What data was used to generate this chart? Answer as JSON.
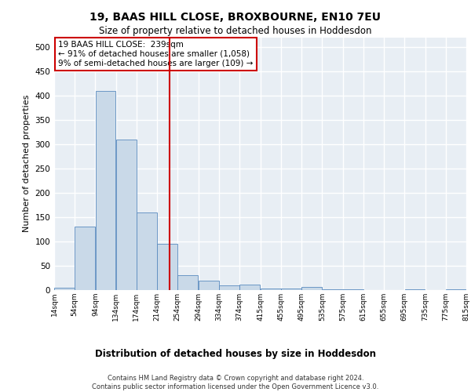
{
  "title": "19, BAAS HILL CLOSE, BROXBOURNE, EN10 7EU",
  "subtitle": "Size of property relative to detached houses in Hoddesdon",
  "xlabel": "Distribution of detached houses by size in Hoddesdon",
  "ylabel": "Number of detached properties",
  "bar_color": "#c9d9e8",
  "bar_edge_color": "#5a8bbf",
  "background_color": "#e8eef4",
  "grid_color": "#ffffff",
  "vline_x": 239,
  "vline_color": "#cc0000",
  "annotation_lines": [
    "19 BAAS HILL CLOSE:  239sqm",
    "← 91% of detached houses are smaller (1,058)",
    "9% of semi-detached houses are larger (109) →"
  ],
  "bin_edges": [
    14,
    54,
    94,
    134,
    174,
    214,
    254,
    294,
    334,
    374,
    415,
    455,
    495,
    535,
    575,
    615,
    655,
    695,
    735,
    775,
    815
  ],
  "bar_heights": [
    5,
    130,
    410,
    310,
    160,
    95,
    30,
    20,
    10,
    12,
    4,
    3,
    6,
    2,
    1,
    0,
    0,
    1,
    0,
    2
  ],
  "ylim": [
    0,
    520
  ],
  "yticks": [
    0,
    50,
    100,
    150,
    200,
    250,
    300,
    350,
    400,
    450,
    500
  ],
  "footer_line1": "Contains HM Land Registry data © Crown copyright and database right 2024.",
  "footer_line2": "Contains public sector information licensed under the Open Government Licence v3.0."
}
